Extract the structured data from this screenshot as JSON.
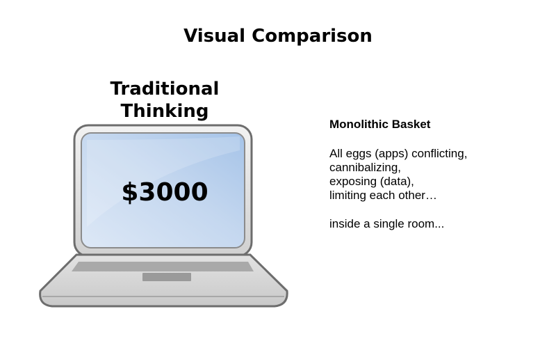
{
  "title": "Visual Comparison",
  "laptop": {
    "heading_lines": [
      "Traditional",
      "Thinking"
    ],
    "price": "$3000",
    "icon": "laptop-icon"
  },
  "description": {
    "title": "Monolithic Basket",
    "body_lines": [
      "All eggs (apps) conflicting,",
      "cannibalizing,",
      "exposing (data),",
      "limiting each other…"
    ],
    "footer": "inside a single room..."
  }
}
